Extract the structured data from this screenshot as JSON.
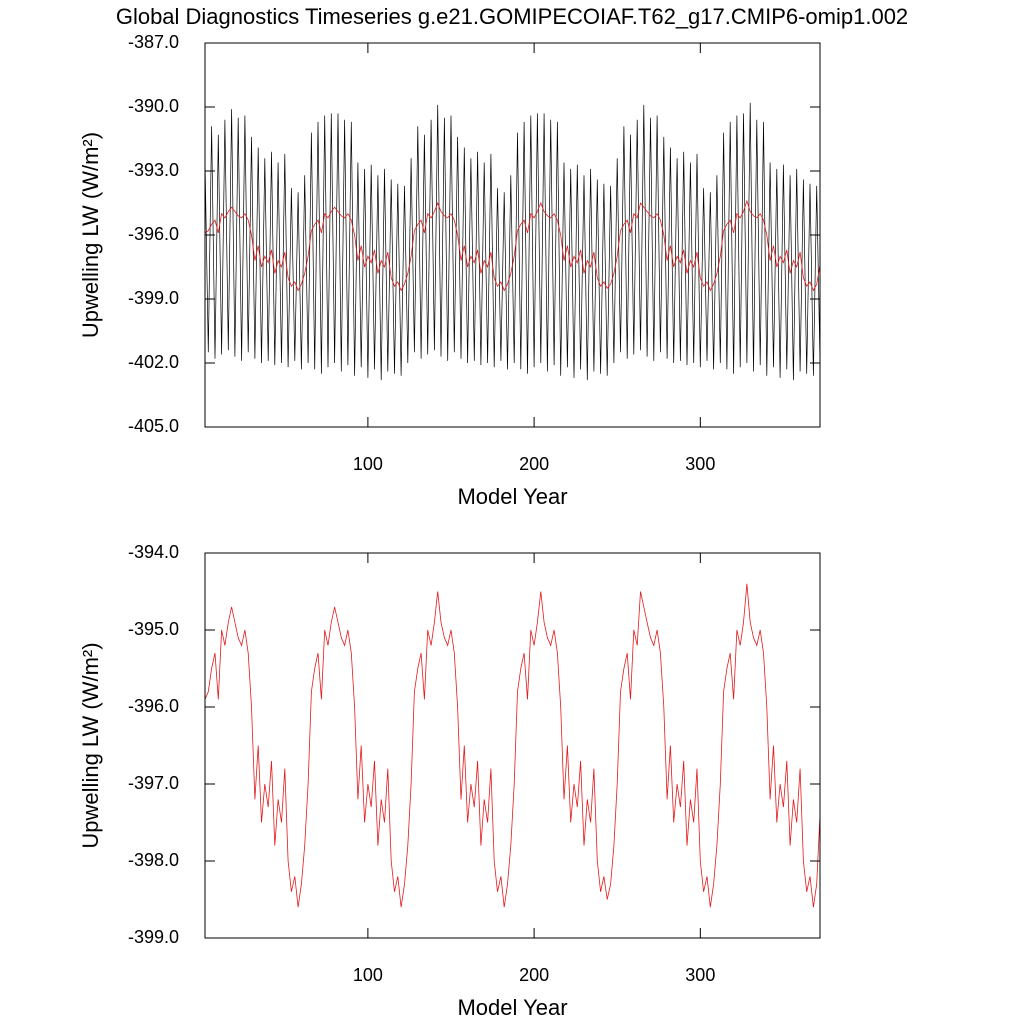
{
  "chart_data": [
    {
      "type": "line",
      "title": "Global Diagnostics Timeseries g.e21.GOMIPECOIAF.T62_g17.CMIP6-omip1.002",
      "x_label": "Model Year",
      "y_label": "Upwelling LW (W/m²)",
      "xlim": [
        2,
        372
      ],
      "xticks": [
        100,
        200,
        300
      ],
      "ylim": [
        -405,
        -387
      ],
      "yticks": [
        {
          "value": -405,
          "label": "-405.0"
        },
        {
          "value": -402,
          "label": "-402.0"
        },
        {
          "value": -399,
          "label": "-399.0"
        },
        {
          "value": -396,
          "label": "-396.0"
        },
        {
          "value": -393,
          "label": "-393.0"
        },
        {
          "value": -390,
          "label": "-390.0"
        },
        {
          "value": -387,
          "label": "-387.0"
        }
      ],
      "x": [
        2,
        4,
        6,
        8,
        10,
        12,
        14,
        16,
        18,
        20,
        22,
        24,
        26,
        28,
        30,
        32,
        34,
        36,
        38,
        40,
        42,
        44,
        46,
        48,
        50,
        52,
        54,
        56,
        58,
        60,
        62,
        64,
        66,
        68,
        70,
        72,
        74,
        76,
        78,
        80,
        82,
        84,
        86,
        88,
        90,
        92,
        94,
        96,
        98,
        100,
        102,
        104,
        106,
        108,
        110,
        112,
        114,
        116,
        118,
        120,
        122,
        124,
        126,
        128,
        130,
        132,
        134,
        136,
        138,
        140,
        142,
        144,
        146,
        148,
        150,
        152,
        154,
        156,
        158,
        160,
        162,
        164,
        166,
        168,
        170,
        172,
        174,
        176,
        178,
        180,
        182,
        184,
        186,
        188,
        190,
        192,
        194,
        196,
        198,
        200,
        202,
        204,
        206,
        208,
        210,
        212,
        214,
        216,
        218,
        220,
        222,
        224,
        226,
        228,
        230,
        232,
        234,
        236,
        238,
        240,
        242,
        244,
        246,
        248,
        250,
        252,
        254,
        256,
        258,
        260,
        262,
        264,
        266,
        268,
        270,
        272,
        274,
        276,
        278,
        280,
        282,
        284,
        286,
        288,
        290,
        292,
        294,
        296,
        298,
        300,
        302,
        304,
        306,
        308,
        310,
        312,
        314,
        316,
        318,
        320,
        322,
        324,
        326,
        328,
        330,
        332,
        334,
        336,
        338,
        340,
        342,
        344,
        346,
        348,
        350,
        352,
        354,
        356,
        358,
        360,
        362,
        364,
        366,
        368,
        370,
        372
      ],
      "series": [
        {
          "color": "#000000",
          "values": [
            -392.4,
            -401.5,
            -390.9,
            -401.8,
            -391.3,
            -401.6,
            -390.6,
            -401.4,
            -390.1,
            -401.7,
            -390.5,
            -401.9,
            -390.4,
            -401.5,
            -391.4,
            -401.8,
            -391.9,
            -402.0,
            -392.4,
            -401.9,
            -392.1,
            -402.1,
            -392.6,
            -402.0,
            -392.2,
            -402.2,
            -393.8,
            -401.9,
            -394.0,
            -402.3,
            -393.2,
            -402.0,
            -391.2,
            -402.3,
            -390.7,
            -402.5,
            -390.4,
            -402.2,
            -390.3,
            -402.0,
            -390.3,
            -402.4,
            -390.6,
            -402.1,
            -390.7,
            -402.6,
            -392.6,
            -402.2,
            -392.9,
            -402.7,
            -392.7,
            -402.3,
            -393.2,
            -402.8,
            -392.9,
            -402.4,
            -393.4,
            -402.5,
            -393.6,
            -402.6,
            -393.7,
            -402.0,
            -392.4,
            -401.5,
            -390.9,
            -401.8,
            -391.3,
            -401.6,
            -390.6,
            -401.4,
            -389.9,
            -401.7,
            -390.5,
            -401.9,
            -390.4,
            -401.5,
            -391.4,
            -401.8,
            -391.9,
            -402.0,
            -392.4,
            -401.9,
            -392.1,
            -402.1,
            -392.6,
            -402.0,
            -392.2,
            -402.2,
            -393.8,
            -401.9,
            -394.0,
            -402.3,
            -393.2,
            -402.0,
            -391.2,
            -402.3,
            -390.7,
            -402.5,
            -390.4,
            -402.2,
            -390.3,
            -402.0,
            -390.3,
            -402.4,
            -390.6,
            -402.1,
            -390.7,
            -402.6,
            -392.6,
            -402.2,
            -392.9,
            -402.7,
            -392.7,
            -402.3,
            -393.2,
            -402.8,
            -392.9,
            -402.4,
            -393.4,
            -402.5,
            -393.6,
            -402.6,
            -393.7,
            -402.0,
            -392.4,
            -401.5,
            -390.9,
            -401.8,
            -391.3,
            -401.6,
            -390.6,
            -401.4,
            -389.9,
            -401.7,
            -390.5,
            -401.9,
            -390.4,
            -401.5,
            -391.4,
            -401.8,
            -391.9,
            -402.0,
            -392.4,
            -401.9,
            -392.1,
            -402.1,
            -392.6,
            -402.0,
            -392.2,
            -402.2,
            -393.8,
            -401.9,
            -394.0,
            -402.3,
            -393.2,
            -402.0,
            -391.2,
            -402.3,
            -390.7,
            -402.5,
            -390.4,
            -402.2,
            -390.3,
            -402.0,
            -389.8,
            -402.4,
            -390.6,
            -402.1,
            -390.7,
            -402.6,
            -392.6,
            -402.2,
            -392.9,
            -402.7,
            -392.7,
            -402.3,
            -393.2,
            -402.8,
            -392.9,
            -402.4,
            -393.4,
            -402.5,
            -393.6,
            -402.6,
            -393.7,
            -402.0
          ]
        },
        {
          "color": "#e31a1c",
          "values": [
            -395.9,
            -395.8,
            -395.5,
            -395.3,
            -395.9,
            -395.0,
            -395.2,
            -394.9,
            -394.7,
            -394.9,
            -395.1,
            -395.2,
            -395.0,
            -395.3,
            -396.0,
            -397.2,
            -396.5,
            -397.5,
            -397.0,
            -397.3,
            -396.7,
            -397.8,
            -397.2,
            -397.5,
            -396.8,
            -398.0,
            -398.4,
            -398.2,
            -398.6,
            -398.3,
            -397.8,
            -397.0,
            -395.8,
            -395.5,
            -395.3,
            -395.9,
            -395.0,
            -395.2,
            -394.9,
            -394.7,
            -394.9,
            -395.1,
            -395.2,
            -395.0,
            -395.3,
            -396.0,
            -397.2,
            -396.5,
            -397.5,
            -397.0,
            -397.3,
            -396.7,
            -397.8,
            -397.2,
            -397.5,
            -396.8,
            -398.0,
            -398.4,
            -398.2,
            -398.6,
            -398.3,
            -397.8,
            -397.0,
            -395.8,
            -395.5,
            -395.3,
            -395.9,
            -395.0,
            -395.2,
            -394.9,
            -394.5,
            -394.9,
            -395.1,
            -395.2,
            -395.0,
            -395.3,
            -396.0,
            -397.2,
            -396.5,
            -397.5,
            -397.0,
            -397.3,
            -396.7,
            -397.8,
            -397.2,
            -397.5,
            -396.8,
            -398.0,
            -398.4,
            -398.2,
            -398.6,
            -398.3,
            -397.8,
            -397.0,
            -395.8,
            -395.5,
            -395.3,
            -395.9,
            -395.0,
            -395.2,
            -394.9,
            -394.5,
            -394.9,
            -395.1,
            -395.2,
            -395.0,
            -395.3,
            -396.0,
            -397.2,
            -396.5,
            -397.5,
            -397.0,
            -397.3,
            -396.7,
            -397.8,
            -397.2,
            -397.5,
            -396.8,
            -398.0,
            -398.4,
            -398.2,
            -398.5,
            -398.3,
            -397.8,
            -397.0,
            -395.8,
            -395.5,
            -395.3,
            -395.9,
            -395.0,
            -395.2,
            -394.5,
            -394.7,
            -394.9,
            -395.1,
            -395.2,
            -395.0,
            -395.3,
            -396.0,
            -397.2,
            -396.5,
            -397.5,
            -397.0,
            -397.3,
            -396.7,
            -397.8,
            -397.2,
            -397.5,
            -396.8,
            -398.0,
            -398.4,
            -398.2,
            -398.6,
            -398.3,
            -397.8,
            -397.0,
            -395.8,
            -395.5,
            -395.3,
            -395.9,
            -395.0,
            -395.2,
            -394.9,
            -394.4,
            -394.9,
            -395.1,
            -395.2,
            -395.0,
            -395.3,
            -396.0,
            -397.2,
            -396.5,
            -397.5,
            -397.0,
            -397.3,
            -396.7,
            -397.8,
            -397.2,
            -397.5,
            -396.8,
            -398.0,
            -398.4,
            -398.2,
            -398.6,
            -398.3,
            -397.4
          ]
        }
      ]
    },
    {
      "type": "line",
      "x_label": "Model Year",
      "y_label": "Upwelling LW (W/m²)",
      "xlim": [
        2,
        372
      ],
      "xticks": [
        100,
        200,
        300
      ],
      "ylim": [
        -399,
        -394
      ],
      "yticks": [
        {
          "value": -399,
          "label": "-399.0"
        },
        {
          "value": -398,
          "label": "-398.0"
        },
        {
          "value": -397,
          "label": "-397.0"
        },
        {
          "value": -396,
          "label": "-396.0"
        },
        {
          "value": -395,
          "label": "-395.0"
        },
        {
          "value": -394,
          "label": "-394.0"
        }
      ],
      "x": [
        2,
        4,
        6,
        8,
        10,
        12,
        14,
        16,
        18,
        20,
        22,
        24,
        26,
        28,
        30,
        32,
        34,
        36,
        38,
        40,
        42,
        44,
        46,
        48,
        50,
        52,
        54,
        56,
        58,
        60,
        62,
        64,
        66,
        68,
        70,
        72,
        74,
        76,
        78,
        80,
        82,
        84,
        86,
        88,
        90,
        92,
        94,
        96,
        98,
        100,
        102,
        104,
        106,
        108,
        110,
        112,
        114,
        116,
        118,
        120,
        122,
        124,
        126,
        128,
        130,
        132,
        134,
        136,
        138,
        140,
        142,
        144,
        146,
        148,
        150,
        152,
        154,
        156,
        158,
        160,
        162,
        164,
        166,
        168,
        170,
        172,
        174,
        176,
        178,
        180,
        182,
        184,
        186,
        188,
        190,
        192,
        194,
        196,
        198,
        200,
        202,
        204,
        206,
        208,
        210,
        212,
        214,
        216,
        218,
        220,
        222,
        224,
        226,
        228,
        230,
        232,
        234,
        236,
        238,
        240,
        242,
        244,
        246,
        248,
        250,
        252,
        254,
        256,
        258,
        260,
        262,
        264,
        266,
        268,
        270,
        272,
        274,
        276,
        278,
        280,
        282,
        284,
        286,
        288,
        290,
        292,
        294,
        296,
        298,
        300,
        302,
        304,
        306,
        308,
        310,
        312,
        314,
        316,
        318,
        320,
        322,
        324,
        326,
        328,
        330,
        332,
        334,
        336,
        338,
        340,
        342,
        344,
        346,
        348,
        350,
        352,
        354,
        356,
        358,
        360,
        362,
        364,
        366,
        368,
        370,
        372
      ],
      "series": [
        {
          "color": "#e31a1c",
          "values": [
            -395.9,
            -395.8,
            -395.5,
            -395.3,
            -395.9,
            -395.0,
            -395.2,
            -394.9,
            -394.7,
            -394.9,
            -395.1,
            -395.2,
            -395.0,
            -395.3,
            -396.0,
            -397.2,
            -396.5,
            -397.5,
            -397.0,
            -397.3,
            -396.7,
            -397.8,
            -397.2,
            -397.5,
            -396.8,
            -398.0,
            -398.4,
            -398.2,
            -398.6,
            -398.3,
            -397.8,
            -397.0,
            -395.8,
            -395.5,
            -395.3,
            -395.9,
            -395.0,
            -395.2,
            -394.9,
            -394.7,
            -394.9,
            -395.1,
            -395.2,
            -395.0,
            -395.3,
            -396.0,
            -397.2,
            -396.5,
            -397.5,
            -397.0,
            -397.3,
            -396.7,
            -397.8,
            -397.2,
            -397.5,
            -396.8,
            -398.0,
            -398.4,
            -398.2,
            -398.6,
            -398.3,
            -397.8,
            -397.0,
            -395.8,
            -395.5,
            -395.3,
            -395.9,
            -395.0,
            -395.2,
            -394.9,
            -394.5,
            -394.9,
            -395.1,
            -395.2,
            -395.0,
            -395.3,
            -396.0,
            -397.2,
            -396.5,
            -397.5,
            -397.0,
            -397.3,
            -396.7,
            -397.8,
            -397.2,
            -397.5,
            -396.8,
            -398.0,
            -398.4,
            -398.2,
            -398.6,
            -398.3,
            -397.8,
            -397.0,
            -395.8,
            -395.5,
            -395.3,
            -395.9,
            -395.0,
            -395.2,
            -394.9,
            -394.5,
            -394.9,
            -395.1,
            -395.2,
            -395.0,
            -395.3,
            -396.0,
            -397.2,
            -396.5,
            -397.5,
            -397.0,
            -397.3,
            -396.7,
            -397.8,
            -397.2,
            -397.5,
            -396.8,
            -398.0,
            -398.4,
            -398.2,
            -398.5,
            -398.3,
            -397.8,
            -397.0,
            -395.8,
            -395.5,
            -395.3,
            -395.9,
            -395.0,
            -395.2,
            -394.5,
            -394.7,
            -394.9,
            -395.1,
            -395.2,
            -395.0,
            -395.3,
            -396.0,
            -397.2,
            -396.5,
            -397.5,
            -397.0,
            -397.3,
            -396.7,
            -397.8,
            -397.2,
            -397.5,
            -396.8,
            -398.0,
            -398.4,
            -398.2,
            -398.6,
            -398.3,
            -397.8,
            -397.0,
            -395.8,
            -395.5,
            -395.3,
            -395.9,
            -395.0,
            -395.2,
            -394.9,
            -394.4,
            -394.9,
            -395.1,
            -395.2,
            -395.0,
            -395.3,
            -396.0,
            -397.2,
            -396.5,
            -397.5,
            -397.0,
            -397.3,
            -396.7,
            -397.8,
            -397.2,
            -397.5,
            -396.8,
            -398.0,
            -398.4,
            -398.2,
            -398.6,
            -398.3,
            -397.4
          ]
        }
      ]
    }
  ]
}
